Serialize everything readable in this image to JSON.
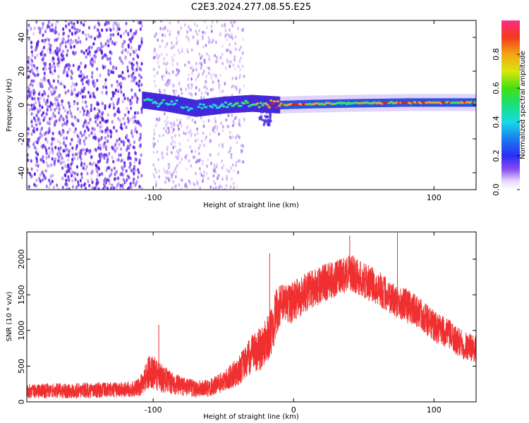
{
  "title": "C2E3.2024.277.08.55.E25",
  "colors": {
    "snr_line": "#f03030",
    "cluster_purple": "#5a1fe6",
    "scatter_light": "#c9a6f5",
    "band_green": "#22d088",
    "band_red": "#e02020"
  },
  "chart_data": [
    {
      "type": "heatmap",
      "xlabel": "Height of straight line (km)",
      "ylabel": "Frequency (Hz)",
      "xlim": [
        -190,
        130
      ],
      "ylim": [
        -50,
        50
      ],
      "xticks": [
        -100,
        0,
        100
      ],
      "xtick_labels": [
        "-100",
        "",
        "100"
      ],
      "yticks": [
        -40,
        -20,
        0,
        20,
        40
      ],
      "ytick_labels": [
        "-40",
        "-20",
        "0",
        "20",
        "40"
      ],
      "colorbar": {
        "label": "Normalized spectral amplitude",
        "range": [
          0,
          1
        ],
        "ticks": [
          0.0,
          0.2,
          0.4,
          0.6,
          0.8
        ],
        "tick_labels": [
          "0.0",
          "0.2",
          "0.4",
          "0.6",
          "0.8"
        ],
        "colormap": "rainbow"
      },
      "dense_noise_region_km": [
        -190,
        -108
      ],
      "scattered_noise_region_km": [
        -100,
        -35
      ],
      "signal_band": [
        {
          "x": -108,
          "freq": 3,
          "amp": 0.45
        },
        {
          "x": -90,
          "freq": 1,
          "amp": 0.35
        },
        {
          "x": -70,
          "freq": -2,
          "amp": 0.25
        },
        {
          "x": -50,
          "freq": 0,
          "amp": 0.4
        },
        {
          "x": -30,
          "freq": 1,
          "amp": 0.5
        },
        {
          "x": -10,
          "freq": 0,
          "amp": 0.85
        },
        {
          "x": 10,
          "freq": 0.5,
          "amp": 0.7
        },
        {
          "x": 40,
          "freq": 1,
          "amp": 0.55
        },
        {
          "x": 80,
          "freq": 1.5,
          "amp": 0.95
        },
        {
          "x": 100,
          "freq": 1.5,
          "amp": 0.8
        },
        {
          "x": 130,
          "freq": 1.5,
          "amp": 0.7
        }
      ]
    },
    {
      "type": "line",
      "xlabel": "Height of straight line (km)",
      "ylabel": "SNR (10 * v/v)",
      "xlim": [
        -190,
        130
      ],
      "ylim": [
        0,
        2380
      ],
      "xticks": [
        -100,
        0,
        100
      ],
      "xtick_labels": [
        "-100",
        "0",
        "100"
      ],
      "yticks": [
        0,
        500,
        1000,
        1500,
        2000
      ],
      "ytick_labels": [
        "0",
        "500",
        "1000",
        "1500",
        "2000"
      ],
      "series": [
        {
          "envelope": {
            "x": [
              -190,
              -150,
              -120,
              -110,
              -102,
              -95,
              -85,
              -70,
              -60,
              -50,
              -40,
              -30,
              -22,
              -18,
              -15,
              -13,
              -10,
              0,
              10,
              20,
              30,
              40,
              50,
              60,
              70,
              80,
              90,
              100,
              110,
              120,
              130
            ],
            "mid": [
              150,
              160,
              170,
              200,
              450,
              340,
              250,
              180,
              190,
              280,
              420,
              650,
              780,
              900,
              1050,
              1200,
              1350,
              1400,
              1550,
              1650,
              1720,
              1820,
              1700,
              1600,
              1450,
              1350,
              1250,
              1050,
              950,
              800,
              750
            ],
            "spread": [
              200,
              220,
              220,
              250,
              500,
              420,
              300,
              250,
              250,
              300,
              400,
              550,
              650,
              650,
              700,
              700,
              600,
              600,
              550,
              550,
              500,
              520,
              500,
              500,
              480,
              480,
              450,
              450,
              420,
              420,
              400
            ]
          },
          "peaks": [
            {
              "x": -96,
              "y": 1080
            },
            {
              "x": -17,
              "y": 2080
            },
            {
              "x": 40,
              "y": 2330
            },
            {
              "x": 74,
              "y": 2370
            }
          ]
        }
      ]
    }
  ]
}
